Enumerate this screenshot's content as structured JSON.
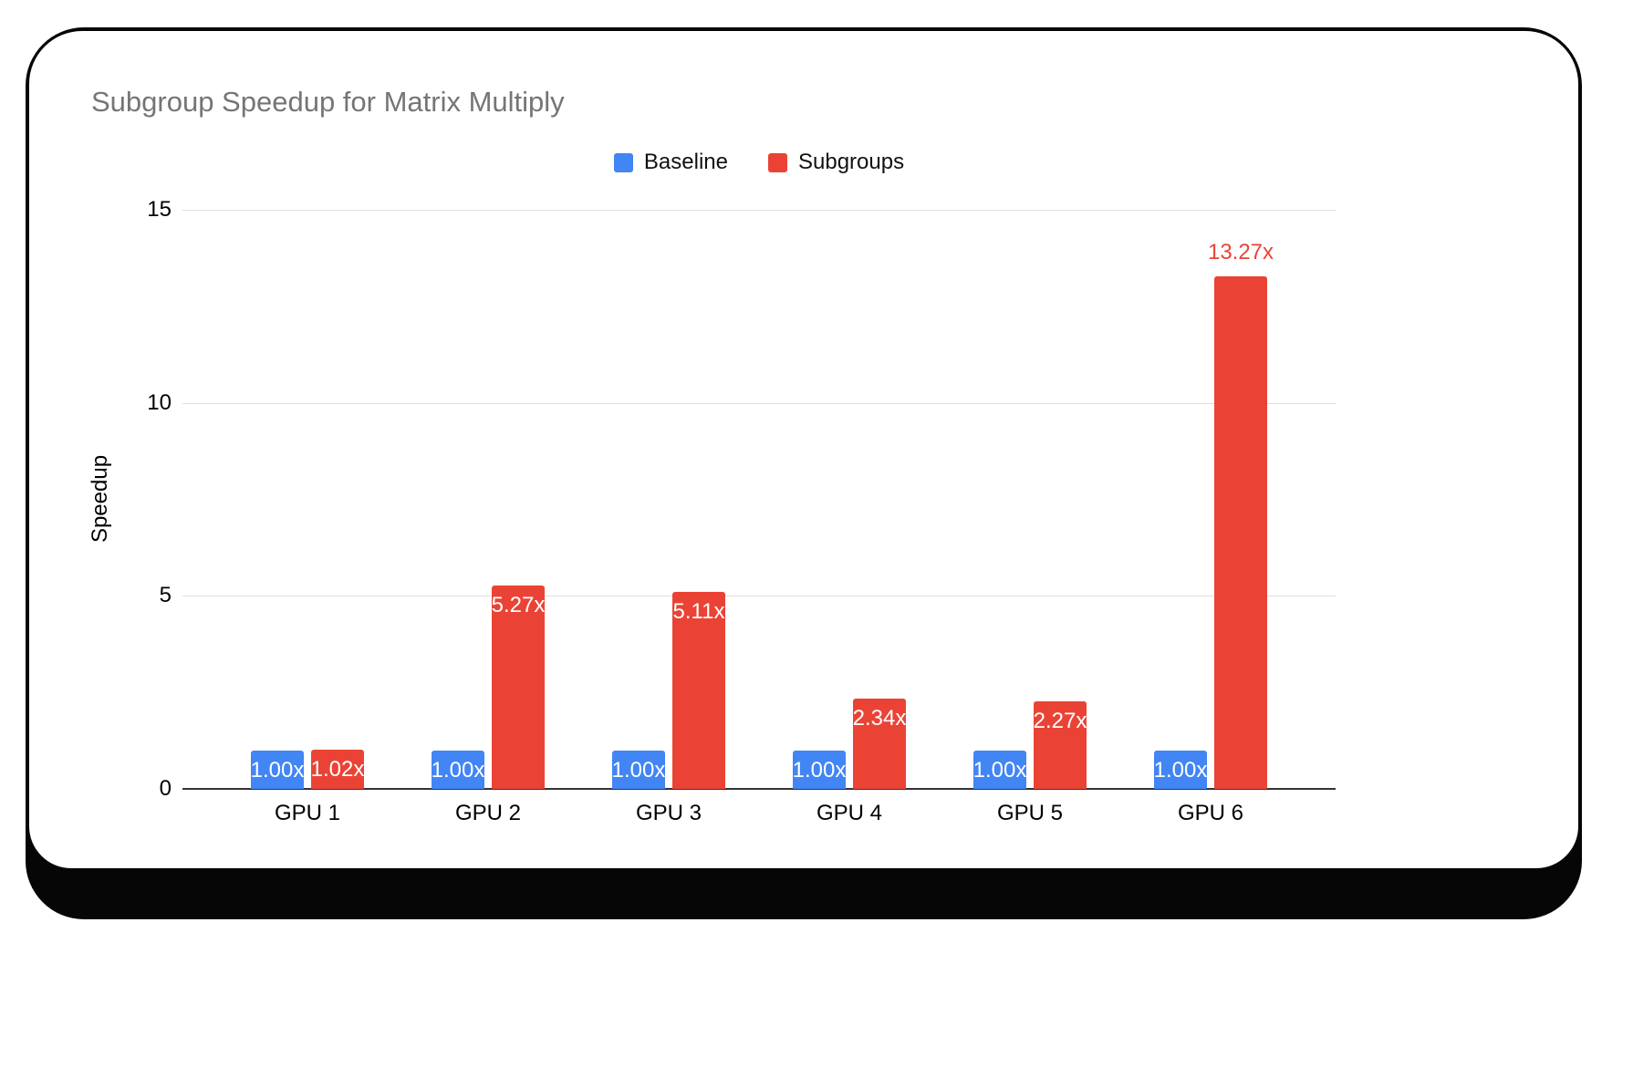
{
  "chart_data": {
    "type": "bar",
    "title": "Subgroup Speedup for Matrix Multiply",
    "xlabel": "",
    "ylabel": "Speedup",
    "categories": [
      "GPU 1",
      "GPU 2",
      "GPU 3",
      "GPU 4",
      "GPU 5",
      "GPU 6"
    ],
    "series": [
      {
        "name": "Baseline",
        "color": "#4285F4",
        "values": [
          1.0,
          1.0,
          1.0,
          1.0,
          1.0,
          1.0
        ],
        "labels": [
          "1.00x",
          "1.00x",
          "1.00x",
          "1.00x",
          "1.00x",
          "1.00x"
        ],
        "outside_labels": [
          false,
          false,
          false,
          false,
          false,
          false
        ]
      },
      {
        "name": "Subgroups",
        "color": "#EA4335",
        "values": [
          1.02,
          5.27,
          5.11,
          2.34,
          2.27,
          13.27
        ],
        "labels": [
          "1.02x",
          "5.27x",
          "5.11x",
          "2.34x",
          "2.27x",
          "13.27x"
        ],
        "outside_labels": [
          false,
          false,
          false,
          false,
          false,
          true
        ]
      }
    ],
    "y_ticks": [
      0,
      5,
      10,
      15
    ],
    "ylim": [
      0,
      15
    ],
    "grid": true,
    "legend_position": "top-center",
    "colors": {
      "title_text": "#757575",
      "gridline": "#E0E0E0",
      "axis_line": "#333333",
      "inside_label_text": "#FFFFFF",
      "card_border": "#060606"
    }
  }
}
